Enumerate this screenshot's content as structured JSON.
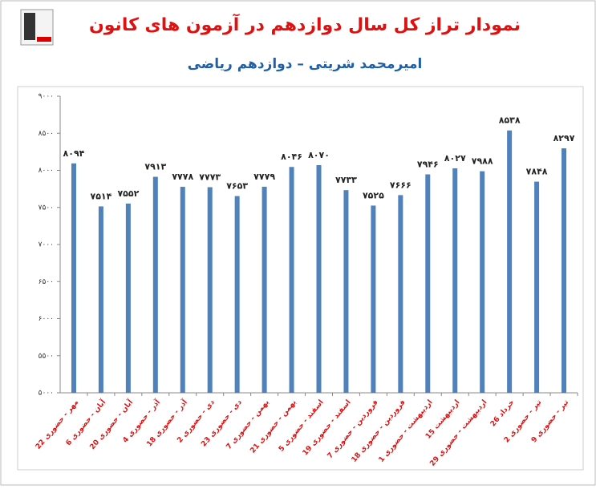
{
  "chart_data": {
    "type": "bar",
    "title": "نمودار تراز کل سال دوازدهم در آزمون های کانون",
    "subtitle": "امیرمحمد شریتی – دوازدهم ریاضی",
    "categories": [
      "22 مهر - حضوری",
      "6 آبان - حضوری",
      "20 آبان - حضوری",
      "4 آذر - حضوری",
      "18 آذر - حضوری",
      "2 دی - حضوری",
      "23 دی - حضوری",
      "7 بهمن - حضوری",
      "21 بهمن - حضوری",
      "5 اسفند - حضوری",
      "19 اسفند - حضوری",
      "7 فروردین - حضوری",
      "18 فروردین - حضوری",
      "1 اردیبهشت - حضوری",
      "15 اردیبهشت",
      "29 اردیبهشت - حضوری",
      "26 خرداد",
      "2 تیر - حضوری",
      "9 تیر - حضوری"
    ],
    "values": [
      8094,
      7514,
      7552,
      7913,
      7778,
      7773,
      7653,
      7779,
      8046,
      8070,
      7733,
      7525,
      7666,
      7946,
      8027,
      7988,
      8538,
      7848,
      8297
    ],
    "value_labels": [
      "۸۰۹۴",
      "۷۵۱۴",
      "۷۵۵۲",
      "۷۹۱۳",
      "۷۷۷۸",
      "۷۷۷۳",
      "۷۶۵۳",
      "۷۷۷۹",
      "۸۰۴۶",
      "۸۰۷۰",
      "۷۷۳۳",
      "۷۵۲۵",
      "۷۶۶۶",
      "۷۹۴۶",
      "۸۰۲۷",
      "۷۹۸۸",
      "۸۵۳۸",
      "۷۸۴۸",
      "۸۲۹۷"
    ],
    "color": "#4f81bd",
    "ylim": [
      5000,
      9000
    ],
    "yticks": [
      {
        "value": 5000,
        "label": "۵۰۰۰"
      },
      {
        "value": 5500,
        "label": "۵۵۰۰"
      },
      {
        "value": 6000,
        "label": "۶۰۰۰"
      },
      {
        "value": 6500,
        "label": "۶۵۰۰"
      },
      {
        "value": 7000,
        "label": "۷۰۰۰"
      },
      {
        "value": 7500,
        "label": "۷۵۰۰"
      },
      {
        "value": 8000,
        "label": "۸۰۰۰"
      },
      {
        "value": 8500,
        "label": "۸۵۰۰"
      },
      {
        "value": 9000,
        "label": "۹۰۰۰"
      }
    ],
    "grid": false
  }
}
